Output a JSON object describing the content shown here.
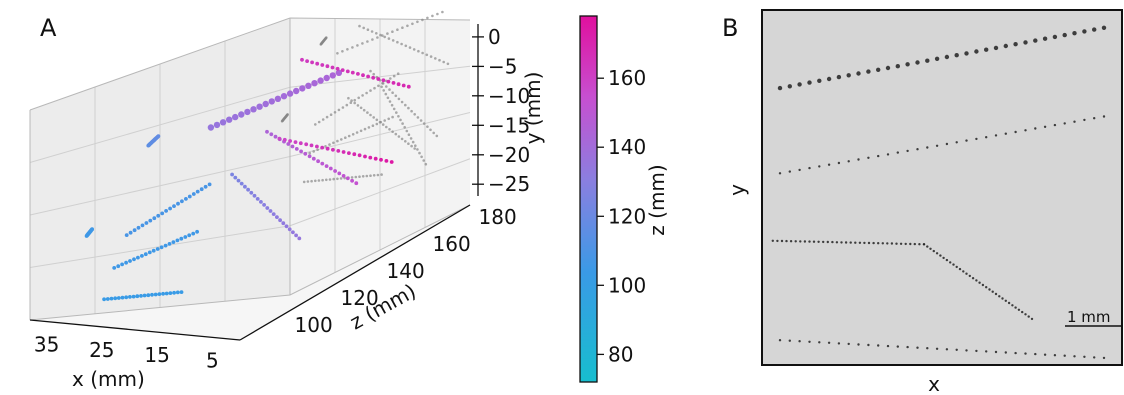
{
  "panels": {
    "a_label": "A",
    "b_label": "B"
  },
  "chart_data": [
    {
      "type": "scatter",
      "panel": "A",
      "projection": "3d",
      "xlabel": "x (mm)",
      "ylabel": "y (mm)",
      "zlabel": "z (mm)",
      "x_ticks": [
        35,
        25,
        15,
        5
      ],
      "y_ticks": [
        0,
        -5,
        -10,
        -15,
        -20,
        -25
      ],
      "z_ticks": [
        100,
        120,
        140,
        160,
        180
      ],
      "xlim": [
        0,
        38
      ],
      "ylim": [
        -27,
        1
      ],
      "zlim": [
        85,
        185
      ],
      "colorbar": {
        "label": "z (mm)",
        "ticks": [
          80,
          100,
          120,
          140,
          160
        ],
        "range": [
          72,
          178
        ],
        "colors": [
          "#17becf",
          "#3a9ae6",
          "#8a7fe0",
          "#c74fd0",
          "#e0109e"
        ]
      },
      "projections_color": "#888888",
      "tracks": [
        {
          "x": [
            30,
            16
          ],
          "y": [
            -26,
            -24
          ],
          "z": [
            98,
            98
          ]
        },
        {
          "x": [
            29,
            14
          ],
          "y": [
            -22,
            -16
          ],
          "z": [
            100,
            100
          ]
        },
        {
          "x": [
            28,
            13
          ],
          "y": [
            -18,
            -10
          ],
          "z": [
            103,
            103
          ]
        },
        {
          "x": [
            27,
            26
          ],
          "y": [
            -7,
            -6
          ],
          "z": [
            110,
            112
          ]
        },
        {
          "x": [
            34,
            33
          ],
          "y": [
            -18,
            -17
          ],
          "z": [
            100,
            100
          ]
        },
        {
          "x": [
            24,
            5
          ],
          "y": [
            -8,
            -1
          ],
          "z": [
            130,
            140
          ]
        },
        {
          "x": [
            20,
            4
          ],
          "y": [
            -4,
            -8
          ],
          "z": [
            160,
            168
          ]
        },
        {
          "x": [
            18,
            6
          ],
          "y": [
            -10,
            -18
          ],
          "z": [
            140,
            150
          ]
        },
        {
          "x": [
            16,
            8
          ],
          "y": [
            -12,
            -22
          ],
          "z": [
            120,
            130
          ]
        },
        {
          "x": [
            22,
            10
          ],
          "y": [
            -14,
            -20
          ],
          "z": [
            155,
            175
          ]
        }
      ]
    },
    {
      "type": "scatter",
      "panel": "B",
      "xlabel": "x",
      "ylabel": "y",
      "scalebar": "1 mm",
      "tracks": [
        {
          "x": [
            0.05,
            0.95
          ],
          "y": [
            0.22,
            0.05
          ]
        },
        {
          "x": [
            0.05,
            0.95
          ],
          "y": [
            0.46,
            0.3
          ]
        },
        {
          "x": [
            0.03,
            0.45
          ],
          "y": [
            0.65,
            0.66
          ]
        },
        {
          "x": [
            0.45,
            0.75
          ],
          "y": [
            0.66,
            0.87
          ]
        },
        {
          "x": [
            0.05,
            0.95
          ],
          "y": [
            0.93,
            0.98
          ]
        }
      ]
    }
  ]
}
